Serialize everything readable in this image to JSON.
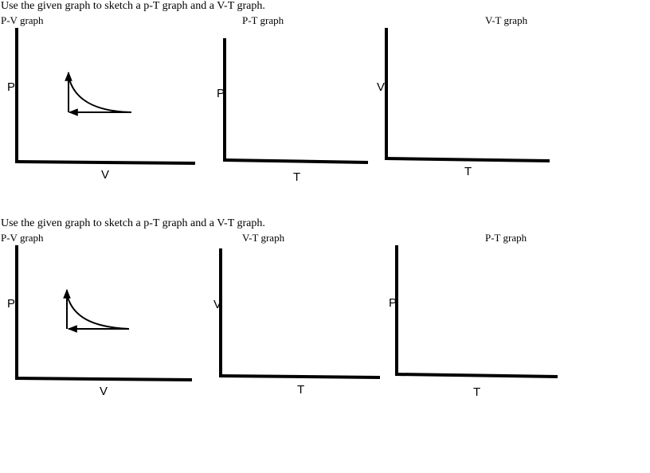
{
  "worksheets": [
    {
      "instruction": "Use the given graph to sketch a p-T graph and a V-T graph.",
      "graphs": [
        {
          "title": "P-V graph",
          "y_label": "P",
          "x_label": "V"
        },
        {
          "title": "P-T graph",
          "y_label": "P",
          "x_label": "T"
        },
        {
          "title": "V-T graph",
          "y_label": "V",
          "x_label": "T"
        }
      ]
    },
    {
      "instruction": "Use the given graph to sketch a p-T graph and a V-T graph.",
      "graphs": [
        {
          "title": "P-V graph",
          "y_label": "P",
          "x_label": "V"
        },
        {
          "title": "V-T graph",
          "y_label": "V",
          "x_label": "T"
        },
        {
          "title": "P-T graph",
          "y_label": "P",
          "x_label": "T"
        }
      ]
    }
  ]
}
